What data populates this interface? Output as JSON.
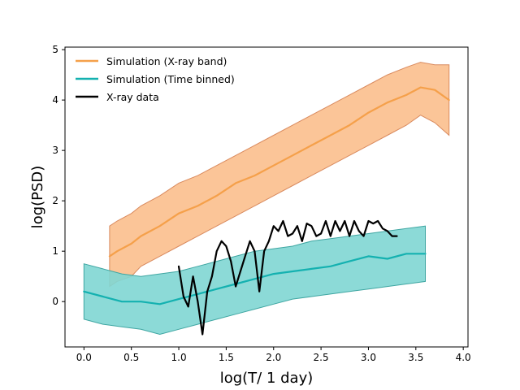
{
  "chart_data": {
    "type": "line",
    "title": "",
    "xlabel": "log(T/ 1 day)",
    "ylabel": "log(PSD)",
    "xlim": [
      -0.2,
      4.05
    ],
    "ylim": [
      -0.9,
      5.05
    ],
    "xticks": [
      0.0,
      0.5,
      1.0,
      1.5,
      2.0,
      2.5,
      3.0,
      3.5,
      4.0
    ],
    "xtick_labels": [
      "0.0",
      "0.5",
      "1.0",
      "1.5",
      "2.0",
      "2.5",
      "3.0",
      "3.5",
      "4.0"
    ],
    "yticks": [
      0,
      1,
      2,
      3,
      4,
      5
    ],
    "ytick_labels": [
      "0",
      "1",
      "2",
      "3",
      "4",
      "5"
    ],
    "grid": false,
    "legend_position": "top-left",
    "series": [
      {
        "name": "Simulation (X-ray band)",
        "color": "#f5a04a",
        "band_color": "#fbbf8d",
        "band_edge_color": "#d98a5e",
        "x": [
          0.27,
          0.35,
          0.5,
          0.6,
          0.8,
          1.0,
          1.2,
          1.4,
          1.6,
          1.8,
          2.0,
          2.2,
          2.4,
          2.6,
          2.8,
          3.0,
          3.2,
          3.4,
          3.55,
          3.7,
          3.85
        ],
        "values": [
          0.9,
          1.0,
          1.15,
          1.3,
          1.5,
          1.75,
          1.9,
          2.1,
          2.35,
          2.5,
          2.7,
          2.9,
          3.1,
          3.3,
          3.5,
          3.75,
          3.95,
          4.1,
          4.25,
          4.2,
          4.0
        ],
        "upper": [
          1.5,
          1.6,
          1.75,
          1.9,
          2.1,
          2.35,
          2.5,
          2.7,
          2.9,
          3.1,
          3.3,
          3.5,
          3.7,
          3.9,
          4.1,
          4.3,
          4.5,
          4.65,
          4.75,
          4.7,
          4.7
        ],
        "lower": [
          0.3,
          0.4,
          0.5,
          0.7,
          0.9,
          1.1,
          1.3,
          1.5,
          1.7,
          1.9,
          2.1,
          2.3,
          2.5,
          2.7,
          2.9,
          3.1,
          3.3,
          3.5,
          3.7,
          3.55,
          3.3
        ]
      },
      {
        "name": "Simulation (Time binned)",
        "color": "#14b1b0",
        "band_color": "#7fd6d3",
        "band_edge_color": "#3fa6a2",
        "x": [
          0.0,
          0.2,
          0.4,
          0.6,
          0.8,
          1.0,
          1.2,
          1.4,
          1.6,
          1.8,
          2.0,
          2.2,
          2.4,
          2.6,
          2.8,
          3.0,
          3.2,
          3.4,
          3.6
        ],
        "values": [
          0.2,
          0.1,
          0.0,
          0.0,
          -0.05,
          0.05,
          0.15,
          0.25,
          0.35,
          0.45,
          0.55,
          0.6,
          0.65,
          0.7,
          0.8,
          0.9,
          0.85,
          0.95,
          0.95
        ],
        "upper": [
          0.75,
          0.65,
          0.55,
          0.5,
          0.55,
          0.6,
          0.7,
          0.8,
          0.9,
          1.0,
          1.05,
          1.1,
          1.2,
          1.25,
          1.3,
          1.35,
          1.4,
          1.45,
          1.5
        ],
        "lower": [
          -0.35,
          -0.45,
          -0.5,
          -0.55,
          -0.65,
          -0.55,
          -0.45,
          -0.35,
          -0.25,
          -0.15,
          -0.05,
          0.05,
          0.1,
          0.15,
          0.2,
          0.25,
          0.3,
          0.35,
          0.4
        ]
      },
      {
        "name": "X-ray data",
        "color": "#000000",
        "x": [
          1.0,
          1.05,
          1.1,
          1.15,
          1.2,
          1.25,
          1.3,
          1.35,
          1.4,
          1.45,
          1.5,
          1.55,
          1.6,
          1.65,
          1.7,
          1.75,
          1.8,
          1.85,
          1.9,
          1.95,
          2.0,
          2.05,
          2.1,
          2.15,
          2.2,
          2.25,
          2.3,
          2.35,
          2.4,
          2.45,
          2.5,
          2.55,
          2.6,
          2.65,
          2.7,
          2.75,
          2.8,
          2.85,
          2.9,
          2.95,
          3.0,
          3.05,
          3.1,
          3.15,
          3.2,
          3.25,
          3.3
        ],
        "values": [
          0.7,
          0.1,
          -0.1,
          0.5,
          0.0,
          -0.65,
          0.2,
          0.5,
          1.0,
          1.2,
          1.1,
          0.8,
          0.3,
          0.6,
          0.9,
          1.2,
          1.0,
          0.2,
          1.0,
          1.2,
          1.5,
          1.4,
          1.6,
          1.3,
          1.35,
          1.5,
          1.2,
          1.55,
          1.5,
          1.3,
          1.35,
          1.6,
          1.3,
          1.6,
          1.4,
          1.6,
          1.3,
          1.6,
          1.4,
          1.3,
          1.6,
          1.55,
          1.6,
          1.45,
          1.4,
          1.3,
          1.3
        ]
      }
    ]
  }
}
